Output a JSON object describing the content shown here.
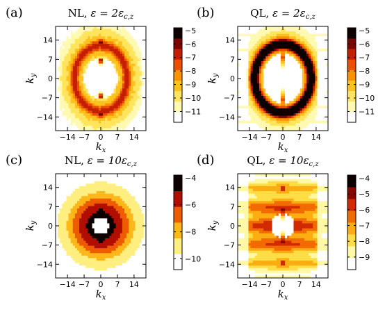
{
  "chart_data": [
    {
      "type": "heatmap",
      "panel": "(a)",
      "title_prefix": "NL, ",
      "title_math": "ε = 2ε",
      "title_sub": "c,z",
      "xlabel": "k",
      "xlabel_sub": "x",
      "ylabel": "k",
      "ylabel_sub": "y",
      "xticks": [
        "−14",
        "−7",
        "0",
        "7",
        "14"
      ],
      "yticks": [
        "14",
        "7",
        "0",
        "−7",
        "−14"
      ],
      "tick_values": [
        -14,
        -7,
        0,
        7,
        14
      ],
      "colorbar": {
        "ticks": [
          "−5",
          "−6",
          "−7",
          "−8",
          "−9",
          "−10",
          "−11"
        ],
        "values": [
          -5,
          -6,
          -7,
          -8,
          -9,
          -10,
          -11
        ],
        "min": -11.8,
        "max": -4.8
      },
      "shape": "nl_ring",
      "ring_radius": 12,
      "ring_width": 4,
      "peak_level": -5
    },
    {
      "type": "heatmap",
      "panel": "(b)",
      "title_prefix": "QL, ",
      "title_math": "ε = 2ε",
      "title_sub": "c,z",
      "xlabel": "k",
      "xlabel_sub": "x",
      "ylabel": "k",
      "ylabel_sub": "y",
      "xticks": [
        "−14",
        "−7",
        "0",
        "7",
        "14"
      ],
      "yticks": [
        "14",
        "7",
        "0",
        "−7",
        "−14"
      ],
      "tick_values": [
        -14,
        -7,
        0,
        7,
        14
      ],
      "colorbar": {
        "ticks": [
          "−5",
          "−6",
          "−7",
          "−8",
          "−9",
          "−10",
          "−11"
        ],
        "values": [
          -5,
          -6,
          -7,
          -8,
          -9,
          -10,
          -11
        ],
        "min": -11.8,
        "max": -4.8
      },
      "shape": "ql_ring",
      "ring_radius": 13,
      "ring_width": 2.5,
      "peak_level": -5
    },
    {
      "type": "heatmap",
      "panel": "(c)",
      "title_prefix": "NL, ",
      "title_math": "ε = 10ε",
      "title_sub": "c,z",
      "xlabel": "k",
      "xlabel_sub": "x",
      "ylabel": "k",
      "ylabel_sub": "y",
      "xticks": [
        "−14",
        "−7",
        "0",
        "7",
        "14"
      ],
      "yticks": [
        "14",
        "7",
        "0",
        "−7",
        "−14"
      ],
      "tick_values": [
        -14,
        -7,
        0,
        7,
        14
      ],
      "colorbar": {
        "ticks": [
          "−4",
          "−6",
          "−8",
          "−10"
        ],
        "values": [
          -4,
          -6,
          -8,
          -10
        ],
        "min": -10.8,
        "max": -3.8
      },
      "shape": "nl_broad",
      "peak_level": -4
    },
    {
      "type": "heatmap",
      "panel": "(d)",
      "title_prefix": "QL, ",
      "title_math": "ε = 10ε",
      "title_sub": "c,z",
      "xlabel": "k",
      "xlabel_sub": "x",
      "ylabel": "k",
      "ylabel_sub": "y",
      "xticks": [
        "−14",
        "−7",
        "0",
        "7",
        "14"
      ],
      "yticks": [
        "14",
        "7",
        "0",
        "−7",
        "−14"
      ],
      "tick_values": [
        -14,
        -7,
        0,
        7,
        14
      ],
      "colorbar": {
        "ticks": [
          "−4",
          "−5",
          "−6",
          "−7",
          "−8",
          "−9"
        ],
        "values": [
          -4,
          -5,
          -6,
          -7,
          -8,
          -9
        ],
        "min": -9.8,
        "max": -3.8
      },
      "shape": "ql_bands",
      "peak_level": -4
    }
  ]
}
